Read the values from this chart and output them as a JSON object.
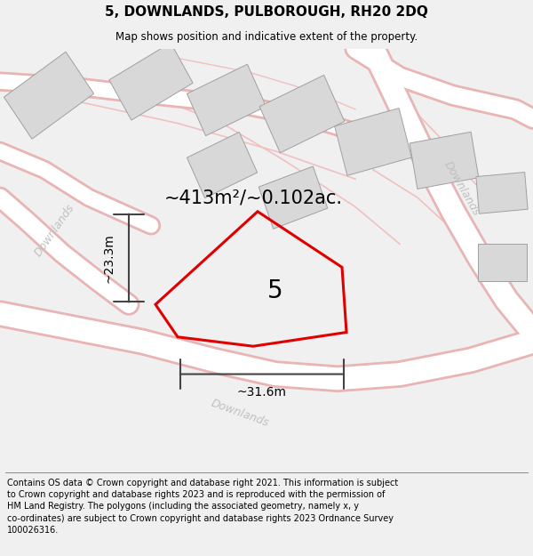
{
  "title": "5, DOWNLANDS, PULBOROUGH, RH20 2DQ",
  "subtitle": "Map shows position and indicative extent of the property.",
  "footer": "Contains OS data © Crown copyright and database right 2021. This information is subject\nto Crown copyright and database rights 2023 and is reproduced with the permission of\nHM Land Registry. The polygons (including the associated geometry, namely x, y\nco-ordinates) are subject to Crown copyright and database rights 2023 Ordnance Survey\n100026316.",
  "area_label": "~413m²/~0.102ac.",
  "number_label": "5",
  "dim_width": "~31.6m",
  "dim_height": "~23.3m",
  "bg_color": "#f0f0f0",
  "map_bg": "#ffffff",
  "road_stroke": "#e8b4b4",
  "building_color": "#d8d8d8",
  "building_edge": "#a0a0a0",
  "road_outline_color": "#c8c8c8",
  "plot_color": "#e00000",
  "dim_color": "#444444",
  "road_label_color": "#c0c0c0",
  "title_fontsize": 11,
  "subtitle_fontsize": 8.5,
  "footer_fontsize": 7.0,
  "area_fontsize": 15,
  "number_fontsize": 20,
  "dim_fontsize": 10,
  "road_label_fontsize": 9
}
